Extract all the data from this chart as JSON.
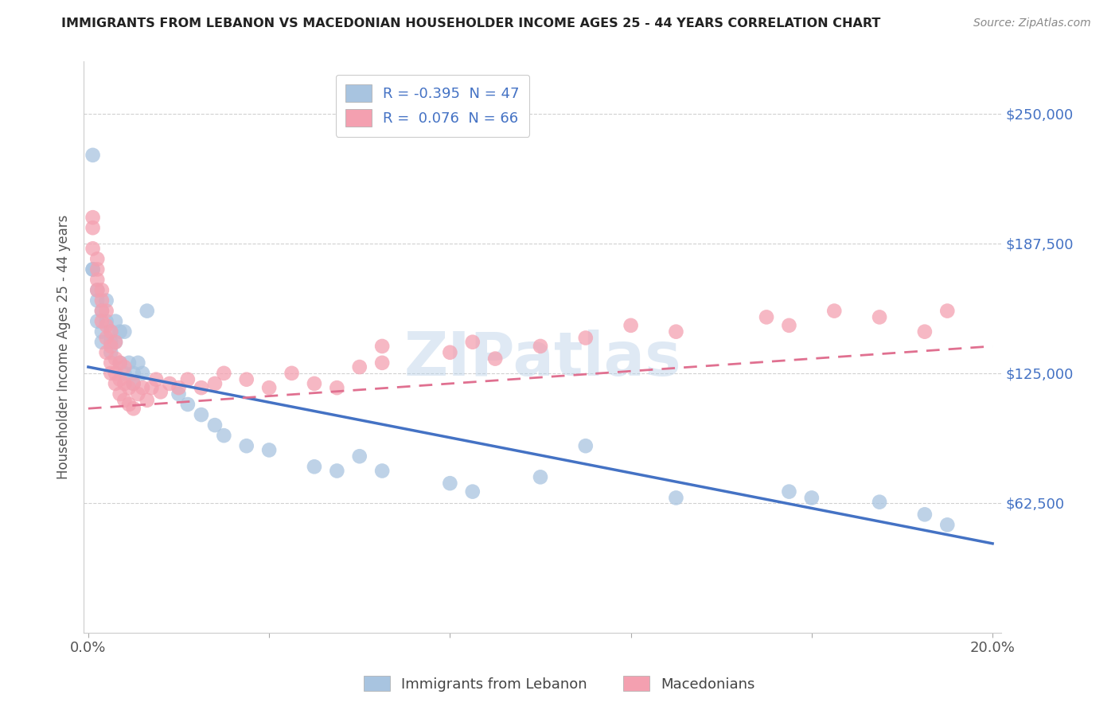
{
  "title": "IMMIGRANTS FROM LEBANON VS MACEDONIAN HOUSEHOLDER INCOME AGES 25 - 44 YEARS CORRELATION CHART",
  "source": "Source: ZipAtlas.com",
  "ylabel": "Householder Income Ages 25 - 44 years",
  "xlim": [
    -0.001,
    0.202
  ],
  "ylim": [
    0,
    275000
  ],
  "xticks": [
    0.0,
    0.04,
    0.08,
    0.12,
    0.16,
    0.2
  ],
  "xticklabels": [
    "0.0%",
    "",
    "",
    "",
    "",
    "20.0%"
  ],
  "ytick_values": [
    62500,
    125000,
    187500,
    250000
  ],
  "ytick_labels": [
    "$62,500",
    "$125,000",
    "$187,500",
    "$250,000"
  ],
  "legend1_label": "R = -0.395  N = 47",
  "legend2_label": "R =  0.076  N = 66",
  "scatter_lebanon_color": "#a8c4e0",
  "scatter_macedonia_color": "#f4a0b0",
  "line_lebanon_color": "#4472c4",
  "line_macedonia_color": "#e07090",
  "watermark": "ZIPatlas",
  "lebanon_R": -0.395,
  "lebanon_N": 47,
  "macedonia_R": 0.076,
  "macedonia_N": 66,
  "leb_line_x0": 0.0,
  "leb_line_y0": 128000,
  "leb_line_x1": 0.2,
  "leb_line_y1": 43000,
  "mac_line_x0": 0.0,
  "mac_line_y0": 108000,
  "mac_line_x1": 0.2,
  "mac_line_y1": 138000,
  "lebanon_x": [
    0.001,
    0.001,
    0.002,
    0.002,
    0.002,
    0.003,
    0.003,
    0.003,
    0.004,
    0.004,
    0.005,
    0.005,
    0.005,
    0.006,
    0.006,
    0.007,
    0.007,
    0.008,
    0.008,
    0.009,
    0.01,
    0.01,
    0.011,
    0.012,
    0.013,
    0.02,
    0.022,
    0.025,
    0.028,
    0.03,
    0.035,
    0.04,
    0.05,
    0.055,
    0.06,
    0.065,
    0.08,
    0.085,
    0.1,
    0.11,
    0.13,
    0.155,
    0.16,
    0.175,
    0.185,
    0.19,
    0.001
  ],
  "lebanon_y": [
    230000,
    175000,
    165000,
    160000,
    150000,
    155000,
    145000,
    140000,
    160000,
    150000,
    145000,
    140000,
    135000,
    150000,
    140000,
    145000,
    130000,
    145000,
    125000,
    130000,
    125000,
    120000,
    130000,
    125000,
    155000,
    115000,
    110000,
    105000,
    100000,
    95000,
    90000,
    88000,
    80000,
    78000,
    85000,
    78000,
    72000,
    68000,
    75000,
    90000,
    65000,
    68000,
    65000,
    63000,
    57000,
    52000,
    175000
  ],
  "macedonia_x": [
    0.001,
    0.001,
    0.001,
    0.002,
    0.002,
    0.002,
    0.002,
    0.003,
    0.003,
    0.003,
    0.003,
    0.004,
    0.004,
    0.004,
    0.004,
    0.005,
    0.005,
    0.005,
    0.005,
    0.006,
    0.006,
    0.006,
    0.006,
    0.007,
    0.007,
    0.007,
    0.008,
    0.008,
    0.008,
    0.009,
    0.009,
    0.01,
    0.01,
    0.011,
    0.012,
    0.013,
    0.014,
    0.015,
    0.016,
    0.018,
    0.02,
    0.022,
    0.025,
    0.028,
    0.03,
    0.035,
    0.04,
    0.045,
    0.05,
    0.055,
    0.06,
    0.065,
    0.065,
    0.08,
    0.085,
    0.09,
    0.1,
    0.11,
    0.12,
    0.13,
    0.15,
    0.155,
    0.165,
    0.175,
    0.185,
    0.19
  ],
  "macedonia_y": [
    200000,
    195000,
    185000,
    180000,
    175000,
    170000,
    165000,
    165000,
    160000,
    155000,
    150000,
    155000,
    148000,
    142000,
    135000,
    145000,
    138000,
    130000,
    125000,
    140000,
    132000,
    125000,
    120000,
    130000,
    122000,
    115000,
    128000,
    120000,
    112000,
    118000,
    110000,
    120000,
    108000,
    115000,
    118000,
    112000,
    118000,
    122000,
    116000,
    120000,
    118000,
    122000,
    118000,
    120000,
    125000,
    122000,
    118000,
    125000,
    120000,
    118000,
    128000,
    138000,
    130000,
    135000,
    140000,
    132000,
    138000,
    142000,
    148000,
    145000,
    152000,
    148000,
    155000,
    152000,
    145000,
    155000
  ]
}
